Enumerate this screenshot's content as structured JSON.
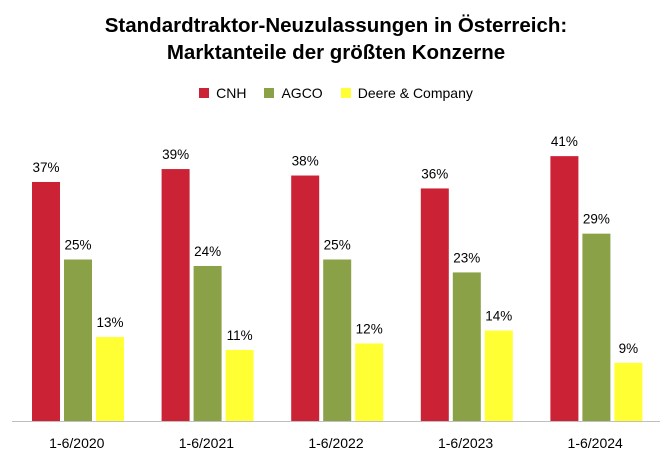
{
  "chart_data": {
    "type": "bar",
    "title": "Standardtraktor-Neuzulassungen in Österreich:",
    "subtitle": "Marktanteile der größten Konzerne",
    "categories": [
      "1-6/2020",
      "1-6/2021",
      "1-6/2022",
      "1-6/2023",
      "1-6/2024"
    ],
    "series": [
      {
        "name": "CNH",
        "color": "#cc2236",
        "values": [
          37,
          39,
          38,
          36,
          41
        ],
        "labels": [
          "37%",
          "39%",
          "38%",
          "36%",
          "41%"
        ]
      },
      {
        "name": "AGCO",
        "color": "#8aa147",
        "values": [
          25,
          24,
          25,
          23,
          29
        ],
        "labels": [
          "25%",
          "24%",
          "25%",
          "23%",
          "29%"
        ]
      },
      {
        "name": "Deere & Company",
        "color": "#ffff33",
        "values": [
          13,
          11,
          12,
          14,
          9
        ],
        "labels": [
          "13%",
          "11%",
          "12%",
          "14%",
          "9%"
        ]
      }
    ],
    "ylim": [
      0,
      45
    ],
    "grid": false,
    "legend_position": "top"
  }
}
